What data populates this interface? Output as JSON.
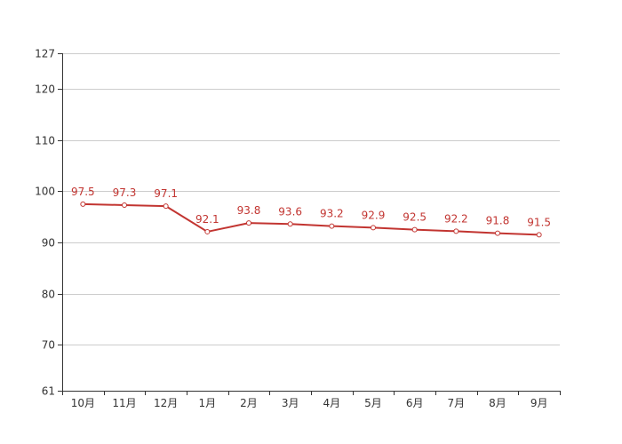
{
  "chart_data": {
    "type": "line",
    "title": "",
    "xlabel": "",
    "ylabel": "",
    "categories": [
      "10月",
      "11月",
      "12月",
      "1月",
      "2月",
      "3月",
      "4月",
      "5月",
      "6月",
      "7月",
      "8月",
      "9月"
    ],
    "series": [
      {
        "values": [
          97.5,
          97.3,
          97.1,
          92.1,
          93.8,
          93.6,
          93.2,
          92.9,
          92.5,
          92.2,
          91.8,
          91.5
        ],
        "color": "#c23531"
      }
    ],
    "ylim": [
      61,
      127
    ],
    "yticks": [
      61,
      70,
      80,
      90,
      100,
      110,
      120,
      127
    ],
    "grid": true,
    "legend": "none"
  }
}
